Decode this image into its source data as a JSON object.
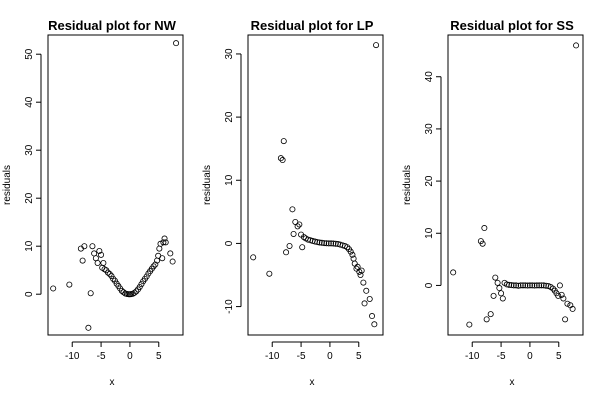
{
  "chart_data": [
    {
      "type": "scatter",
      "title": "Residual plot for NW",
      "xlabel": "x",
      "ylabel": "residuals",
      "xlim": [
        -14.2,
        9.2
      ],
      "ylim": [
        -8.5,
        54
      ],
      "xticks": [
        -10,
        -5,
        0,
        5
      ],
      "yticks": [
        0,
        10,
        20,
        30,
        40,
        50
      ],
      "x": [
        -13.3,
        -10.5,
        -8.5,
        -8.2,
        -7.9,
        -7.2,
        -6.8,
        -6.5,
        -6.2,
        -5.9,
        -5.6,
        -5.3,
        -5.0,
        -4.8,
        -4.6,
        -4.4,
        -4.1,
        -3.8,
        -3.5,
        -3.2,
        -2.9,
        -2.6,
        -2.3,
        -2.0,
        -1.7,
        -1.4,
        -1.1,
        -0.8,
        -0.5,
        -0.2,
        0.0,
        0.2,
        0.5,
        0.8,
        1.1,
        1.4,
        1.7,
        2.0,
        2.3,
        2.6,
        2.9,
        3.2,
        3.5,
        3.8,
        4.1,
        4.4,
        4.7,
        4.9,
        5.1,
        5.3,
        5.6,
        5.8,
        6.0,
        6.2,
        7.0,
        7.4,
        8.0
      ],
      "y": [
        1.2,
        2.0,
        9.5,
        7.0,
        10.0,
        -7.0,
        0.2,
        10.0,
        8.5,
        7.5,
        6.5,
        9.0,
        8.2,
        5.5,
        6.5,
        5.2,
        5.0,
        4.5,
        4.2,
        3.8,
        3.2,
        2.8,
        2.2,
        1.7,
        1.2,
        0.7,
        0.4,
        0.15,
        0.05,
        0.0,
        0.0,
        0.02,
        0.1,
        0.3,
        0.6,
        1.0,
        1.5,
        2.1,
        2.7,
        3.2,
        3.7,
        4.3,
        4.8,
        5.3,
        5.8,
        6.2,
        7.0,
        8.0,
        9.5,
        10.5,
        7.5,
        10.8,
        11.6,
        10.8,
        8.5,
        6.8,
        52.3
      ]
    },
    {
      "type": "scatter",
      "title": "Residual plot for LP",
      "xlabel": "x",
      "ylabel": "residuals",
      "xlim": [
        -14.2,
        9.2
      ],
      "ylim": [
        -14.5,
        33
      ],
      "xticks": [
        -10,
        -5,
        0,
        5
      ],
      "yticks": [
        -10,
        0,
        10,
        20,
        30
      ],
      "x": [
        -13.3,
        -10.5,
        -8.5,
        -8.2,
        -8.0,
        -7.6,
        -7.0,
        -6.5,
        -6.3,
        -6.0,
        -5.6,
        -5.3,
        -5.0,
        -4.8,
        -4.5,
        -4.2,
        -3.8,
        -3.4,
        -3.0,
        -2.6,
        -2.2,
        -1.8,
        -1.4,
        -1.0,
        -0.6,
        -0.2,
        0.2,
        0.6,
        1.0,
        1.4,
        1.8,
        2.2,
        2.6,
        3.0,
        3.3,
        3.6,
        3.9,
        4.1,
        4.3,
        4.6,
        4.8,
        5.1,
        5.3,
        5.5,
        5.8,
        6.0,
        6.3,
        6.9,
        7.3,
        7.7,
        8.0
      ],
      "y": [
        -2.2,
        -4.8,
        13.5,
        13.2,
        16.2,
        -1.4,
        -0.4,
        5.4,
        1.5,
        3.4,
        2.7,
        3.0,
        1.4,
        -0.6,
        1.0,
        0.8,
        0.6,
        0.5,
        0.4,
        0.3,
        0.2,
        0.15,
        0.1,
        0.05,
        0.02,
        0.0,
        0.0,
        -0.02,
        -0.05,
        -0.1,
        -0.2,
        -0.3,
        -0.4,
        -0.6,
        -0.9,
        -1.3,
        -1.8,
        -2.4,
        -3.2,
        -4.0,
        -3.7,
        -4.5,
        -5.0,
        -4.3,
        -6.2,
        -9.5,
        -7.5,
        -8.8,
        -11.5,
        -12.8,
        31.4
      ]
    },
    {
      "type": "scatter",
      "title": "Residual plot for SS",
      "xlabel": "x",
      "ylabel": "residuals",
      "xlim": [
        -14.2,
        9.2
      ],
      "ylim": [
        -9.5,
        48
      ],
      "xticks": [
        -10,
        -5,
        0,
        5
      ],
      "yticks": [
        0,
        10,
        20,
        30,
        40
      ],
      "x": [
        -13.3,
        -10.5,
        -8.5,
        -8.2,
        -7.9,
        -7.5,
        -6.8,
        -6.3,
        -6.0,
        -5.6,
        -5.3,
        -5.0,
        -4.7,
        -4.4,
        -4.0,
        -3.6,
        -3.2,
        -2.8,
        -2.4,
        -2.0,
        -1.6,
        -1.2,
        -0.8,
        -0.4,
        0.0,
        0.4,
        0.8,
        1.2,
        1.6,
        2.0,
        2.4,
        2.8,
        3.2,
        3.6,
        4.0,
        4.3,
        4.6,
        4.9,
        5.2,
        5.5,
        5.8,
        6.1,
        6.5,
        7.0,
        7.4,
        8.0
      ],
      "y": [
        2.5,
        -7.5,
        8.5,
        8.0,
        11.0,
        -6.5,
        -5.5,
        -2.0,
        1.5,
        0.5,
        -0.5,
        -1.5,
        -2.5,
        0.5,
        0.2,
        0.1,
        0.05,
        0.0,
        0.0,
        -0.05,
        0.0,
        0.02,
        0.0,
        -0.02,
        0.0,
        0.0,
        -0.02,
        0.0,
        0.0,
        0.02,
        0.0,
        -0.05,
        -0.1,
        -0.3,
        -0.6,
        -1.0,
        -1.5,
        -2.0,
        0.0,
        -1.8,
        -2.5,
        -6.5,
        -3.5,
        -3.8,
        -4.5,
        46.0
      ]
    }
  ]
}
